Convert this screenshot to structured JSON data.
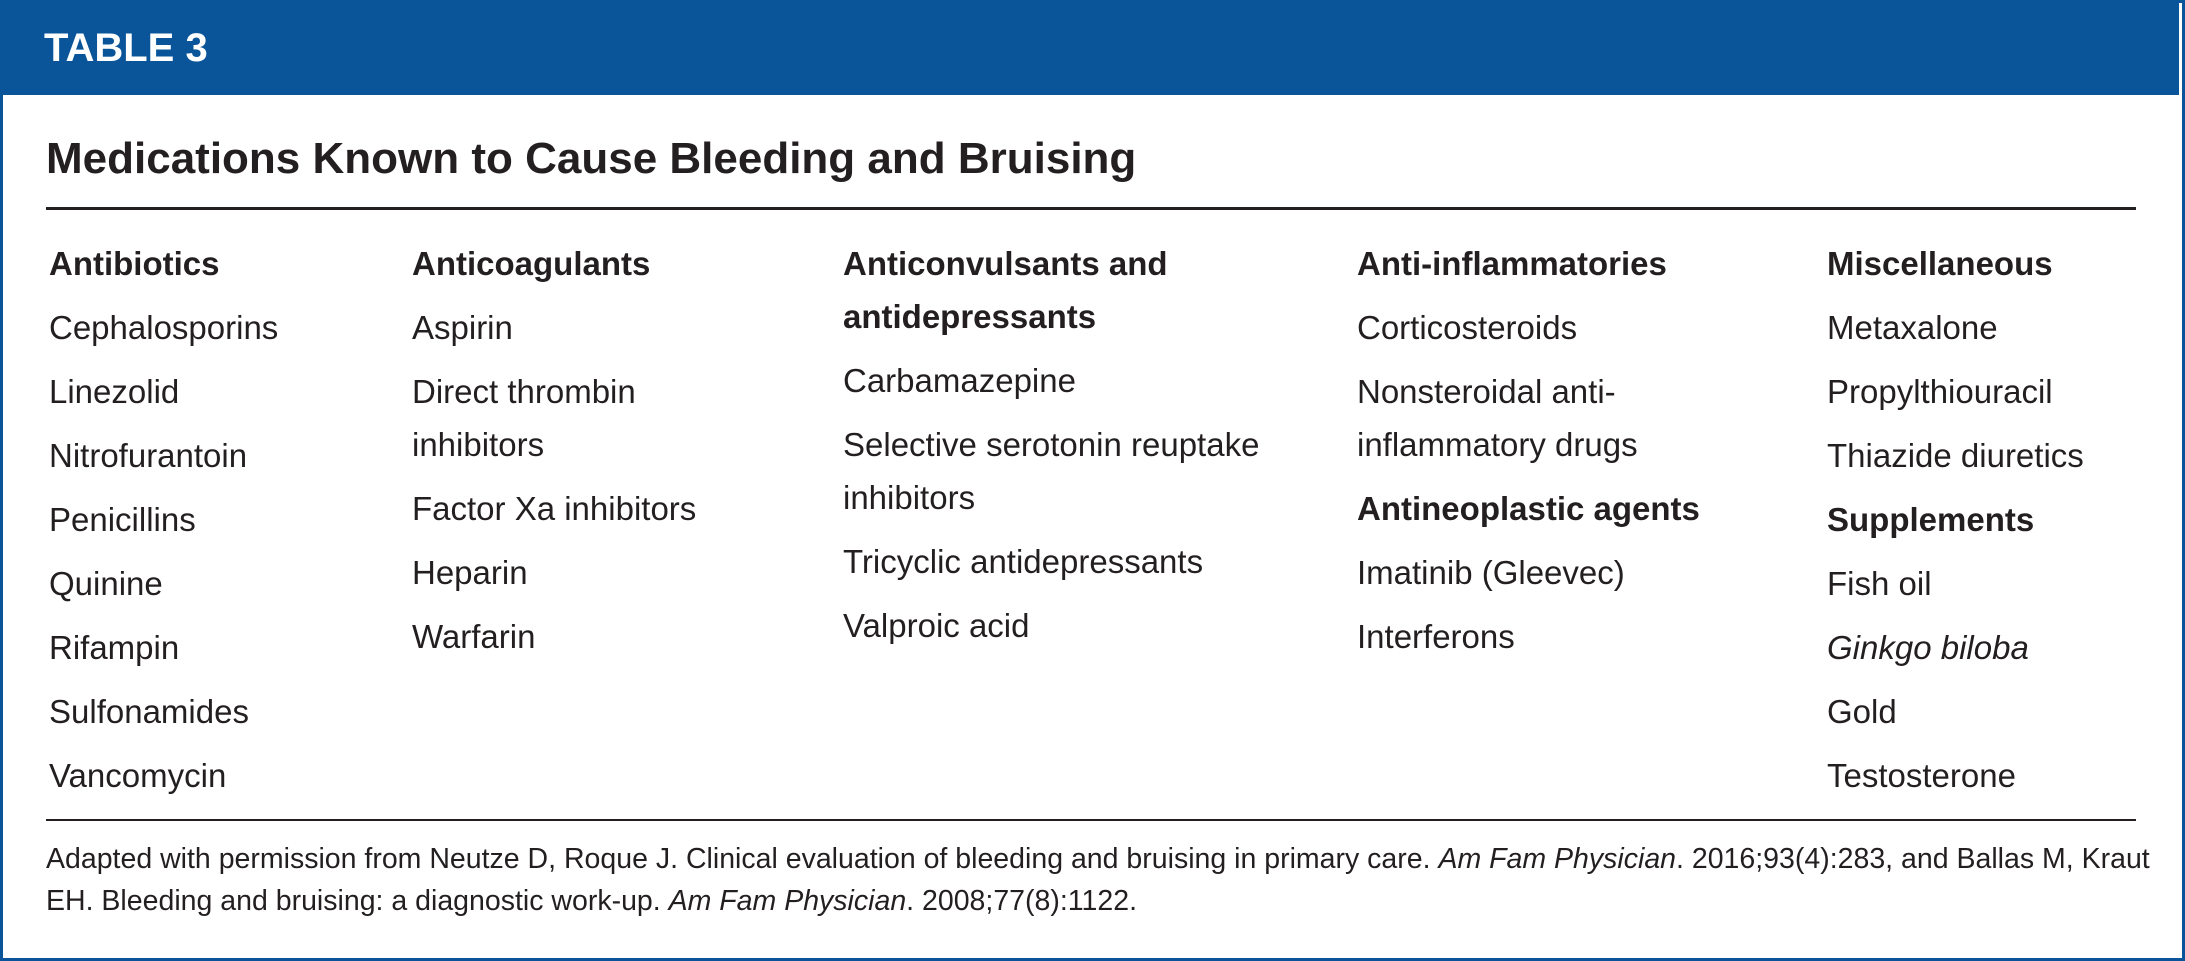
{
  "header": {
    "label": "TABLE 3"
  },
  "title": "Medications Known to Cause Bleeding and Bruising",
  "columns": [
    {
      "groups": [
        {
          "heading": "Antibiotics",
          "items": [
            "Cephalosporins",
            "Linezolid",
            "Nitrofurantoin",
            "Penicillins",
            "Quinine",
            "Rifampin",
            "Sulfonamides",
            "Vancomycin"
          ]
        }
      ]
    },
    {
      "groups": [
        {
          "heading": "Anticoagulants",
          "items": [
            "Aspirin",
            "Direct thrombin inhibitors",
            "Factor Xa inhibitors",
            "Heparin",
            "Warfarin"
          ]
        }
      ]
    },
    {
      "groups": [
        {
          "heading": "Anticonvulsants and antidepressants",
          "items": [
            "Carbamazepine",
            "Selective serotonin reuptake inhibitors",
            "Tricyclic antidepressants",
            "Valproic acid"
          ]
        }
      ]
    },
    {
      "groups": [
        {
          "heading": "Anti-inflammatories",
          "items": [
            "Corticosteroids",
            "Nonsteroidal anti-inflammatory drugs"
          ]
        },
        {
          "heading": "Antineoplastic agents",
          "items": [
            "Imatinib (Gleevec)",
            "Interferons"
          ]
        }
      ]
    },
    {
      "groups": [
        {
          "heading": "Miscellaneous",
          "items": [
            "Metaxalone",
            "Propylthiouracil",
            "Thiazide diuretics"
          ]
        },
        {
          "heading": "Supplements",
          "items": [
            "Fish oil",
            {
              "text": "Ginkgo biloba",
              "italic": true
            },
            "Gold",
            "Testosterone"
          ]
        }
      ]
    }
  ],
  "footnote": {
    "parts": [
      {
        "text": "Adapted with permission from Neutze D, Roque J. Clinical evaluation of bleeding and bruising in primary care. "
      },
      {
        "text": "Am Fam Physician",
        "italic": true
      },
      {
        "text": ". 2016;93(4):283, and Ballas M, Kraut EH. Bleeding and bruising: a diagnostic work-up. "
      },
      {
        "text": "Am Fam Physician",
        "italic": true
      },
      {
        "text": ". 2008;77(8):1122."
      }
    ]
  }
}
